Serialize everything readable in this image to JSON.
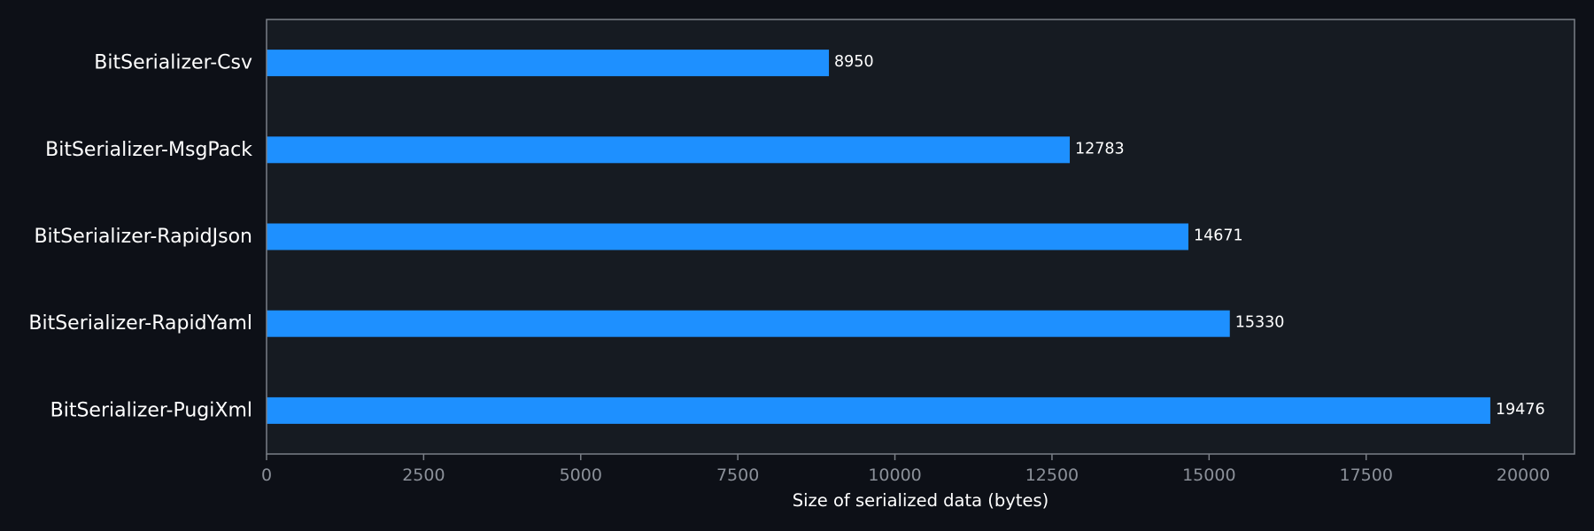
{
  "chart_data": {
    "type": "bar",
    "orientation": "horizontal",
    "categories": [
      "BitSerializer-Csv",
      "BitSerializer-MsgPack",
      "BitSerializer-RapidJson",
      "BitSerializer-RapidYaml",
      "BitSerializer-PugiXml"
    ],
    "values": [
      8950,
      12783,
      14671,
      15330,
      19476
    ],
    "xlabel": "Size of serialized data (bytes)",
    "ylabel": "",
    "xlim": [
      0,
      20816
    ],
    "xticks": [
      0,
      2500,
      5000,
      7500,
      10000,
      12500,
      15000,
      17500,
      20000
    ],
    "grid": false,
    "bar_color": "#1e90ff",
    "plot_background": "#161b22",
    "page_background": "#0d1017",
    "frame_color": "#7a7f87"
  }
}
